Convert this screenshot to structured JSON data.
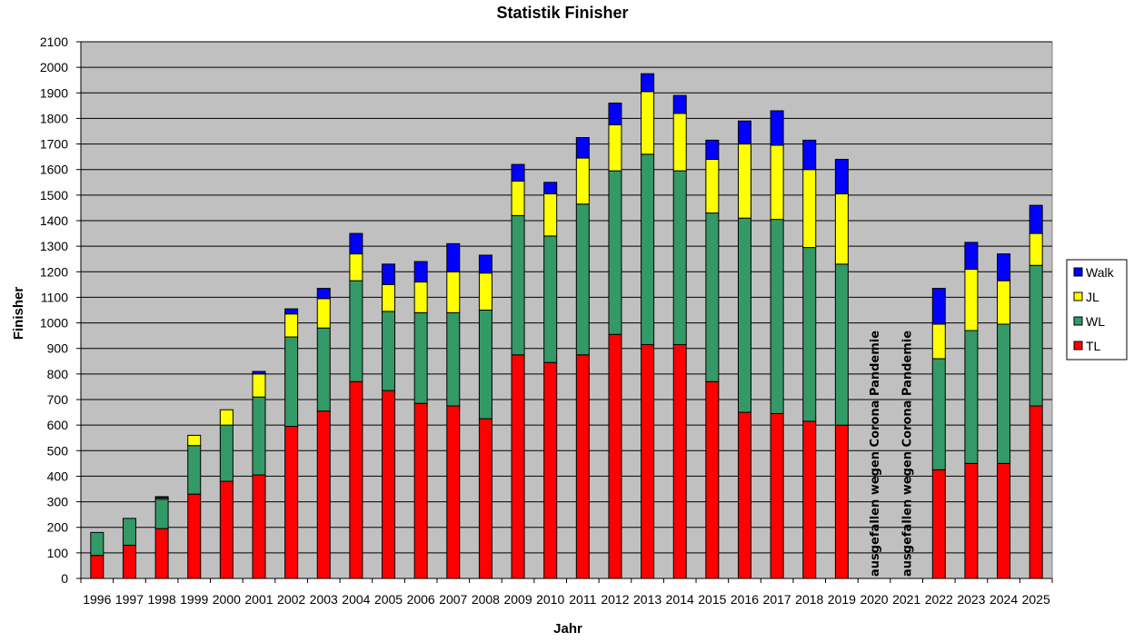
{
  "chart_data": {
    "type": "bar",
    "stacked": true,
    "title": "Statistik Finisher",
    "xlabel": "Jahr",
    "ylabel": "Finisher",
    "ylim": [
      0,
      2100
    ],
    "ytick_step": 100,
    "grid": true,
    "legend_position": "right",
    "categories": [
      "1996",
      "1997",
      "1998",
      "1999",
      "2000",
      "2001",
      "2002",
      "2003",
      "2004",
      "2005",
      "2006",
      "2007",
      "2008",
      "2009",
      "2010",
      "2011",
      "2012",
      "2013",
      "2014",
      "2015",
      "2016",
      "2017",
      "2018",
      "2019",
      "2020",
      "2021",
      "2022",
      "2023",
      "2024",
      "2025"
    ],
    "series": [
      {
        "name": "TL",
        "color": "#ff0000",
        "values": [
          90,
          130,
          195,
          330,
          380,
          405,
          595,
          655,
          770,
          735,
          685,
          675,
          625,
          875,
          845,
          875,
          955,
          915,
          915,
          770,
          650,
          645,
          615,
          600,
          0,
          0,
          425,
          450,
          450,
          675
        ]
      },
      {
        "name": "WL",
        "color": "#339966",
        "values": [
          90,
          105,
          115,
          190,
          220,
          305,
          350,
          325,
          395,
          310,
          355,
          365,
          425,
          545,
          495,
          590,
          640,
          745,
          680,
          660,
          760,
          760,
          680,
          630,
          0,
          0,
          435,
          520,
          545,
          550
        ]
      },
      {
        "name": "JL",
        "color": "#ffff00",
        "values": [
          0,
          0,
          5,
          40,
          60,
          90,
          90,
          115,
          105,
          105,
          120,
          160,
          145,
          135,
          165,
          180,
          180,
          245,
          225,
          210,
          290,
          290,
          305,
          275,
          0,
          0,
          135,
          240,
          170,
          125
        ]
      },
      {
        "name": "Walk",
        "color": "#0000ff",
        "values": [
          0,
          0,
          5,
          0,
          0,
          10,
          20,
          40,
          80,
          80,
          80,
          110,
          70,
          65,
          45,
          80,
          85,
          70,
          70,
          75,
          90,
          135,
          115,
          135,
          0,
          0,
          140,
          105,
          105,
          110
        ]
      }
    ],
    "annotations": [
      {
        "category": "2020",
        "text": "ausgefallen wegen Corona Pandemie"
      },
      {
        "category": "2021",
        "text": "ausgefallen wegen Corona Pandemie"
      }
    ],
    "plot_background": "#c0c0c0"
  }
}
